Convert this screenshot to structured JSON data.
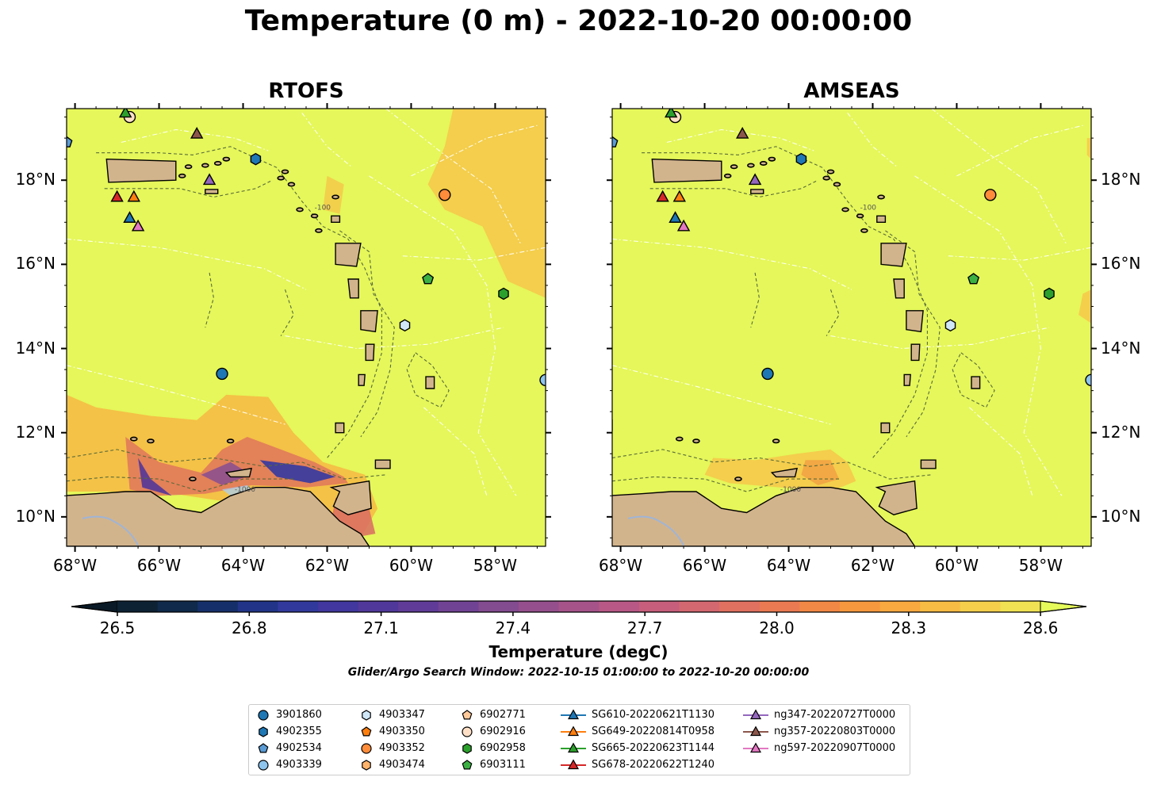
{
  "suptitle": "Temperature (0 m) - 2022-10-20 00:00:00",
  "panels": [
    {
      "title": "RTOFS",
      "model": "rtofs"
    },
    {
      "title": "AMSEAS",
      "model": "amseas"
    }
  ],
  "axes": {
    "x_ticks": [
      {
        "value": -68,
        "label": "68°W"
      },
      {
        "value": -66,
        "label": "66°W"
      },
      {
        "value": -64,
        "label": "64°W"
      },
      {
        "value": -62,
        "label": "62°W"
      },
      {
        "value": -60,
        "label": "60°W"
      },
      {
        "value": -58,
        "label": "58°W"
      }
    ],
    "y_ticks": [
      {
        "value": 18,
        "label": "18°N"
      },
      {
        "value": 16,
        "label": "16°N"
      },
      {
        "value": 14,
        "label": "14°N"
      },
      {
        "value": 12,
        "label": "12°N"
      },
      {
        "value": 10,
        "label": "10°N"
      }
    ],
    "lon_range": [
      -68.2,
      -56.8
    ],
    "lat_range": [
      9.3,
      19.7
    ]
  },
  "colorbar": {
    "title": "Temperature (degC)",
    "ticks": [
      "26.5",
      "26.8",
      "27.1",
      "27.4",
      "27.7",
      "28.0",
      "28.3",
      "28.6"
    ],
    "colors": [
      "#0d2233",
      "#0f2a4a",
      "#152f6a",
      "#213488",
      "#32399c",
      "#41379e",
      "#50389a",
      "#603c98",
      "#714395",
      "#834b90",
      "#954f8c",
      "#a6538a",
      "#b85886",
      "#c65e7c",
      "#d36870",
      "#e07060",
      "#ea7a52",
      "#f28845",
      "#f6983e",
      "#f8a93f",
      "#f7bc44",
      "#f5cf4c",
      "#f0e253"
    ],
    "extend_low": "#0a1a26",
    "extend_high": "#e5fb5a"
  },
  "search_window": "Glider/Argo Search Window: 2022-10-15 01:00:00 to 2022-10-20 00:00:00",
  "contour_labels": [
    "-100",
    "-1000"
  ],
  "legend": {
    "items": [
      {
        "label": "3901860",
        "marker": "circle",
        "color": "#1f77b4"
      },
      {
        "label": "4902355",
        "marker": "hexagon",
        "color": "#1f77b4"
      },
      {
        "label": "4902534",
        "marker": "pentagon",
        "color": "#5a9bd5"
      },
      {
        "label": "4903339",
        "marker": "circle",
        "color": "#8ec5ee"
      },
      {
        "label": "4903347",
        "marker": "hexagon",
        "color": "#cfe7f7"
      },
      {
        "label": "4903350",
        "marker": "pentagon",
        "color": "#ff7f0e"
      },
      {
        "label": "4903352",
        "marker": "circle",
        "color": "#ff8c3a"
      },
      {
        "label": "4903474",
        "marker": "hexagon",
        "color": "#ffb36b"
      },
      {
        "label": "6902771",
        "marker": "pentagon",
        "color": "#ffc99a"
      },
      {
        "label": "6902916",
        "marker": "circle",
        "color": "#ffe0c7"
      },
      {
        "label": "6902958",
        "marker": "hexagon",
        "color": "#2ca02c"
      },
      {
        "label": "6903111",
        "marker": "pentagon",
        "color": "#3cb043"
      },
      {
        "label": "SG610-20220621T1130",
        "marker": "triangle-line",
        "color": "#1f77b4"
      },
      {
        "label": "SG649-20220814T0958",
        "marker": "triangle-line",
        "color": "#ff7f0e"
      },
      {
        "label": "SG665-20220623T1144",
        "marker": "triangle-line",
        "color": "#2ca02c"
      },
      {
        "label": "SG678-20220622T1240",
        "marker": "triangle-line",
        "color": "#d62728"
      },
      {
        "label": "ng347-20220727T0000",
        "marker": "triangle-line",
        "color": "#9467bd"
      },
      {
        "label": "ng357-20220803T0000",
        "marker": "triangle-line",
        "color": "#8c564b"
      },
      {
        "label": "ng597-20220907T0000",
        "marker": "triangle-line",
        "color": "#e377c2"
      }
    ]
  },
  "observations": [
    {
      "label": "3901860",
      "lon": -64.5,
      "lat": 13.4
    },
    {
      "label": "4902355",
      "lon": -63.7,
      "lat": 18.5
    },
    {
      "label": "4902534",
      "lon": -68.2,
      "lat": 18.9
    },
    {
      "label": "4903339",
      "lon": -56.8,
      "lat": 13.25
    },
    {
      "label": "4903347",
      "lon": -60.15,
      "lat": 14.55
    },
    {
      "label": "4903352",
      "lon": -59.2,
      "lat": 17.65
    },
    {
      "label": "6902916",
      "lon": -66.7,
      "lat": 19.5
    },
    {
      "label": "6902958",
      "lon": -57.8,
      "lat": 15.3
    },
    {
      "label": "6903111",
      "lon": -59.6,
      "lat": 15.65
    },
    {
      "label": "SG610-20220621T1130",
      "lon": -66.7,
      "lat": 17.1
    },
    {
      "label": "SG649-20220814T0958",
      "lon": -66.6,
      "lat": 17.6
    },
    {
      "label": "SG665-20220623T1144",
      "lon": -66.8,
      "lat": 19.6
    },
    {
      "label": "SG678-20220622T1240",
      "lon": -67.0,
      "lat": 17.6
    },
    {
      "label": "ng347-20220727T0000",
      "lon": -64.8,
      "lat": 18.0
    },
    {
      "label": "ng357-20220803T0000",
      "lon": -65.1,
      "lat": 19.1
    },
    {
      "label": "ng597-20220907T0000",
      "lon": -66.5,
      "lat": 16.9
    }
  ]
}
